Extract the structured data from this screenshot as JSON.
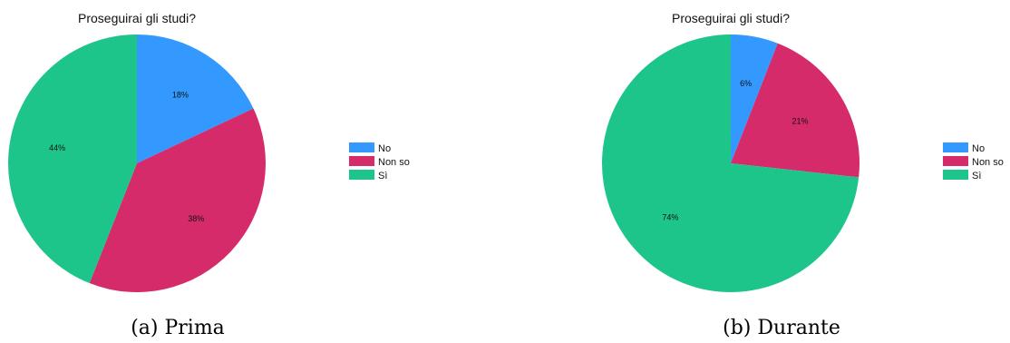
{
  "colors": {
    "No": "#3399ff",
    "Non so": "#d62b6a",
    "Sì": "#1dc58a"
  },
  "chart_data": [
    {
      "type": "pie",
      "title": "Proseguirai gli studi?",
      "caption": "(a) Prima",
      "legend": [
        "No",
        "Non so",
        "Sì"
      ],
      "legend_position": "right",
      "slices": [
        {
          "label": "No",
          "value": 18,
          "display": "18%"
        },
        {
          "label": "Non so",
          "value": 38,
          "display": "38%"
        },
        {
          "label": "Sì",
          "value": 44,
          "display": "44%"
        }
      ]
    },
    {
      "type": "pie",
      "title": "Proseguirai gli studi?",
      "caption": "(b) Durante",
      "legend": [
        "No",
        "Non so",
        "Sì"
      ],
      "legend_position": "right",
      "slices": [
        {
          "label": "No",
          "value": 6,
          "display": "6%"
        },
        {
          "label": "Non so",
          "value": 21,
          "display": "21%"
        },
        {
          "label": "Sì",
          "value": 74,
          "display": "74%"
        }
      ]
    }
  ]
}
